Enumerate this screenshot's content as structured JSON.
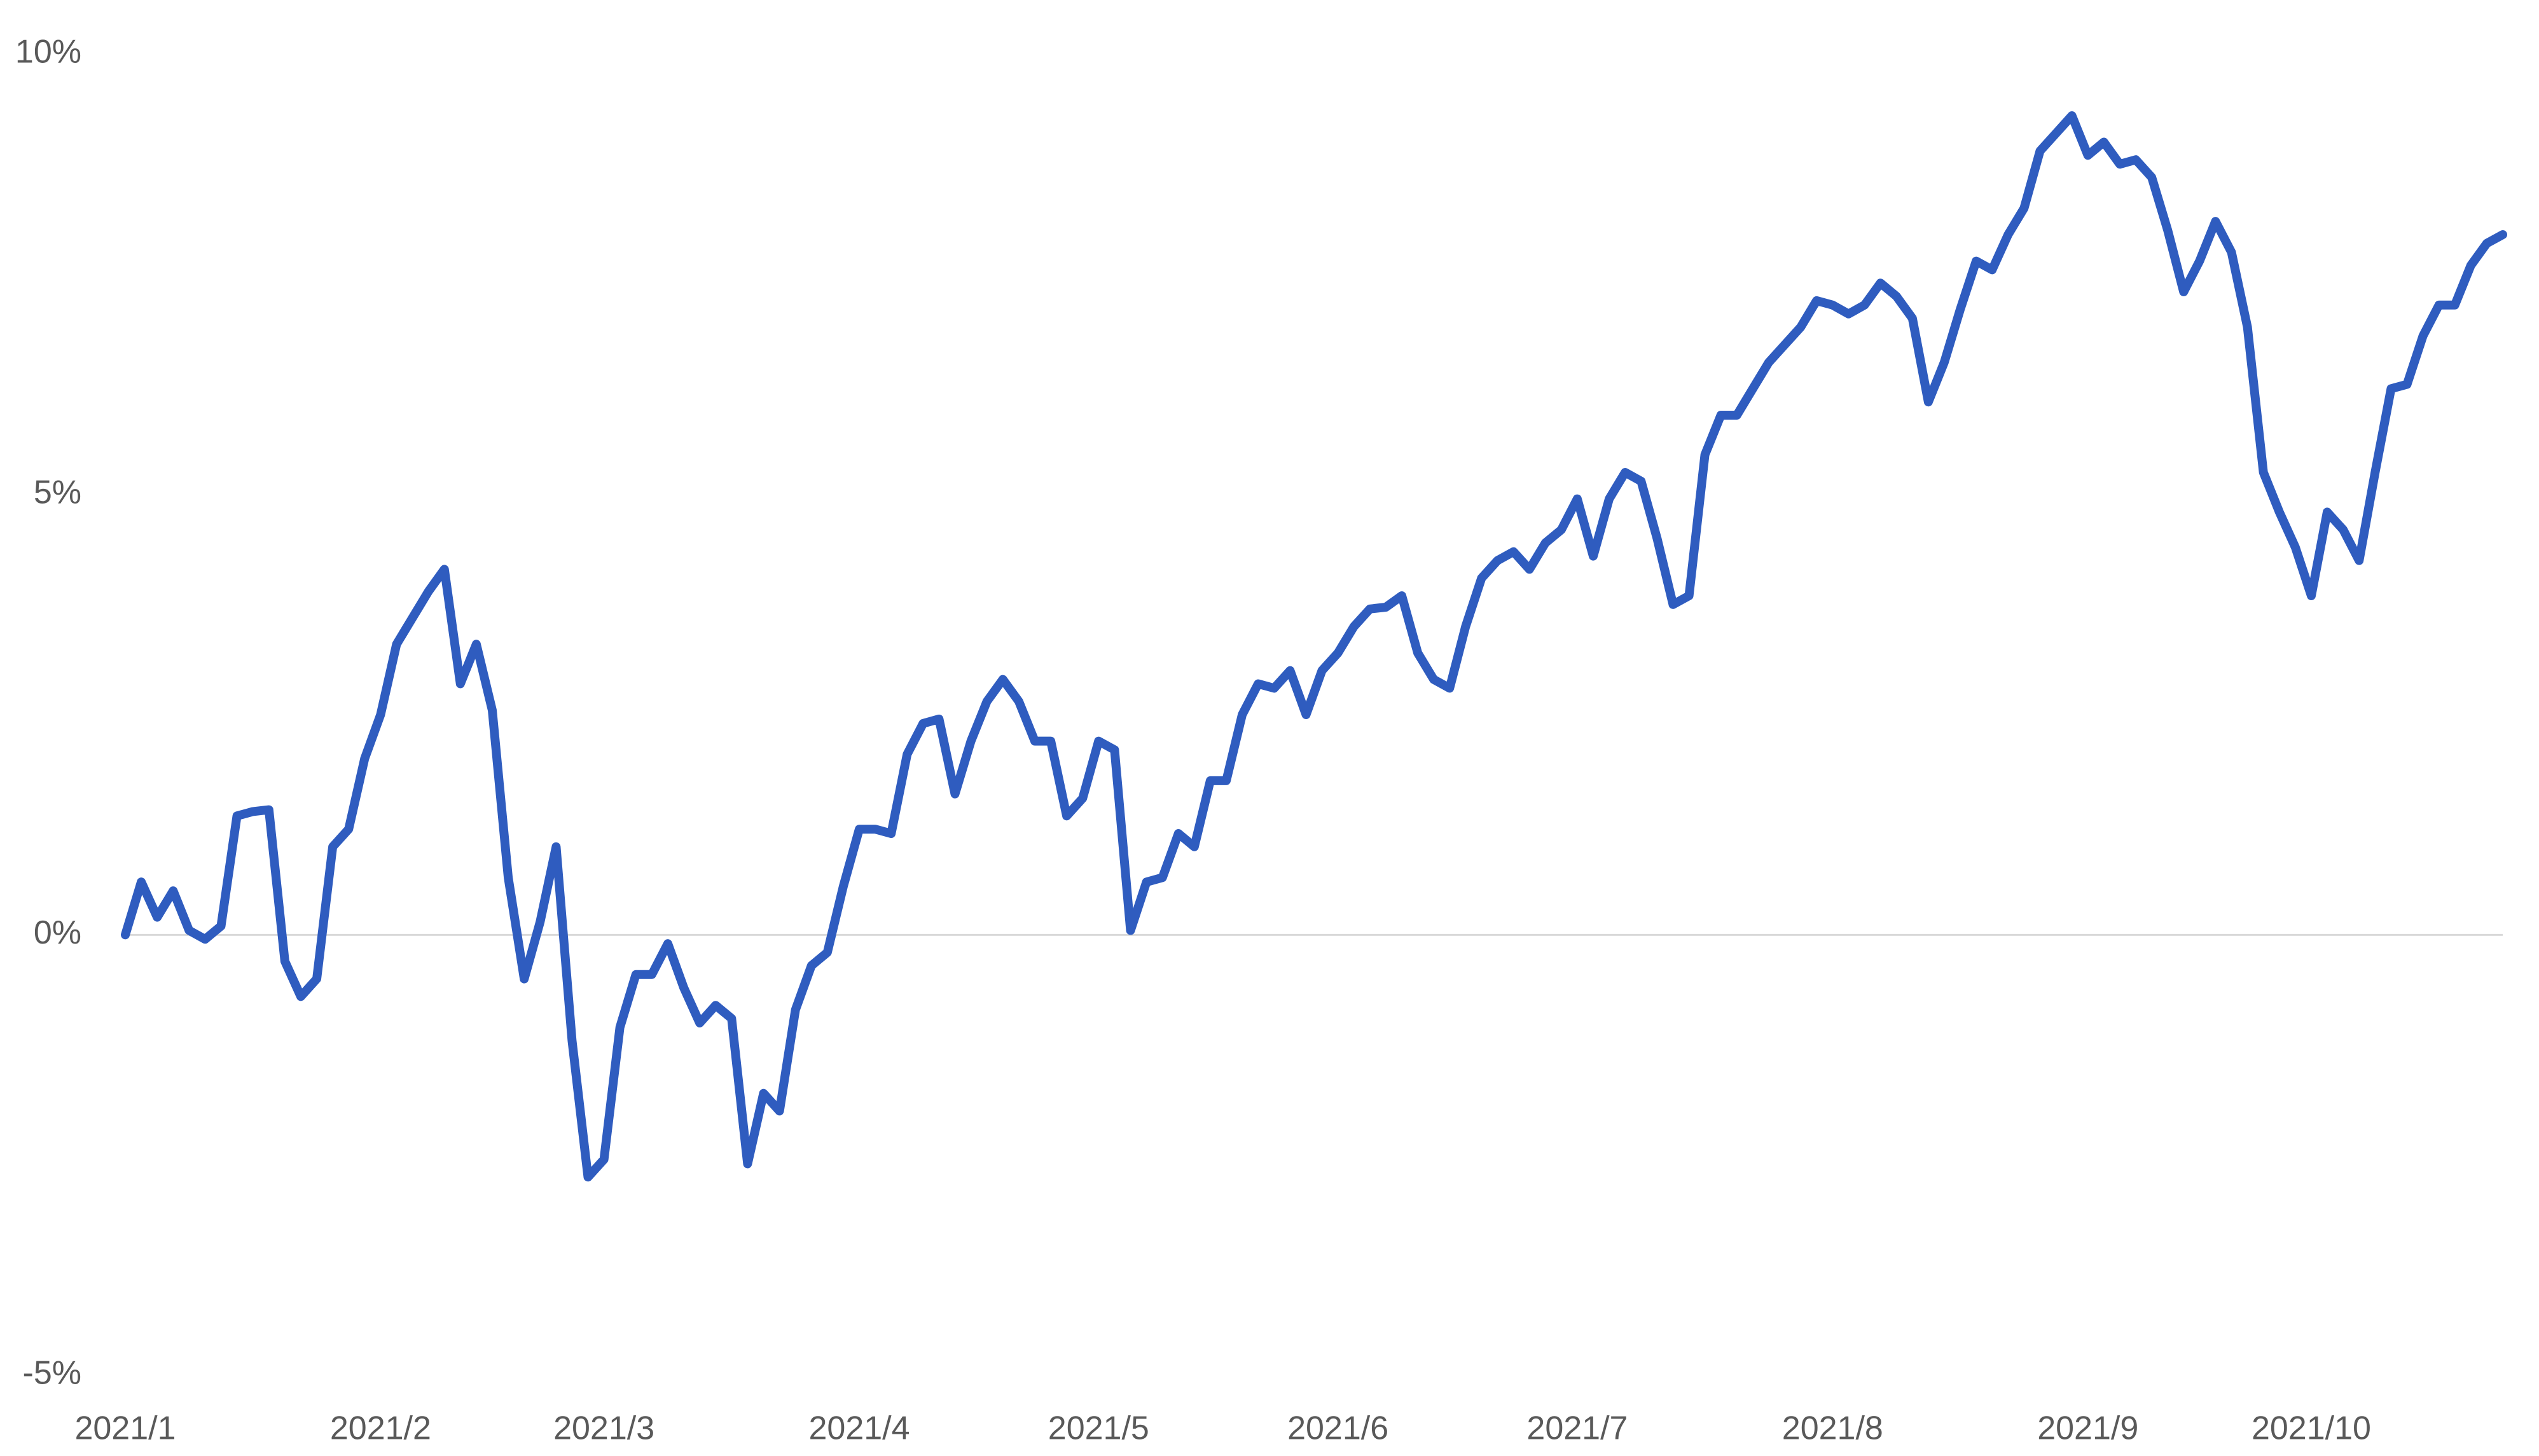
{
  "chart_data": {
    "type": "line",
    "categories": [
      "2021/1",
      null,
      null,
      null,
      null,
      null,
      null,
      null,
      null,
      null,
      null,
      null,
      null,
      null,
      null,
      null,
      "2021/2",
      null,
      null,
      null,
      null,
      null,
      null,
      null,
      null,
      null,
      null,
      null,
      null,
      null,
      "2021/3",
      null,
      null,
      null,
      null,
      null,
      null,
      null,
      null,
      null,
      null,
      null,
      null,
      null,
      null,
      null,
      "2021/4",
      null,
      null,
      null,
      null,
      null,
      null,
      null,
      null,
      null,
      null,
      null,
      null,
      null,
      null,
      "2021/5",
      null,
      null,
      null,
      null,
      null,
      null,
      null,
      null,
      null,
      null,
      null,
      null,
      null,
      null,
      "2021/6",
      null,
      null,
      null,
      null,
      null,
      null,
      null,
      null,
      null,
      null,
      null,
      null,
      null,
      null,
      "2021/7",
      null,
      null,
      null,
      null,
      null,
      null,
      null,
      null,
      null,
      null,
      null,
      null,
      null,
      null,
      null,
      "2021/8",
      null,
      null,
      null,
      null,
      null,
      null,
      null,
      null,
      null,
      null,
      null,
      null,
      null,
      null,
      null,
      "2021/9",
      null,
      null,
      null,
      null,
      null,
      null,
      null,
      null,
      null,
      null,
      null,
      null,
      null,
      "2021/10",
      null,
      null,
      null,
      null,
      null,
      null,
      null,
      null,
      null,
      null,
      null,
      null
    ],
    "series": [
      {
        "color": "#2f5cbf",
        "values": [
          0,
          0.6,
          0.2,
          0.5,
          0.05,
          -0.05,
          0.1,
          1.35,
          1.4,
          1.42,
          -0.3,
          -0.7,
          -0.5,
          1.0,
          1.2,
          2.0,
          2.5,
          3.3,
          3.6,
          3.9,
          4.15,
          2.85,
          3.3,
          2.55,
          0.65,
          -0.5,
          0.15,
          1.0,
          -1.2,
          -2.75,
          -2.55,
          -1.05,
          -0.45,
          -0.45,
          -0.1,
          -0.6,
          -1.0,
          -0.8,
          -0.95,
          -2.6,
          -1.8,
          -2.0,
          -0.85,
          -0.35,
          -0.2,
          0.55,
          1.2,
          1.2,
          1.15,
          2.05,
          2.4,
          2.45,
          1.6,
          2.2,
          2.65,
          2.9,
          2.65,
          2.2,
          2.2,
          1.35,
          1.55,
          2.2,
          2.1,
          0.05,
          0.6,
          0.65,
          1.15,
          1.0,
          1.75,
          1.75,
          2.5,
          2.85,
          2.8,
          3.0,
          2.5,
          3.0,
          3.2,
          3.5,
          3.7,
          3.72,
          3.85,
          3.2,
          2.9,
          2.8,
          3.5,
          4.05,
          4.25,
          4.35,
          4.15,
          4.45,
          4.6,
          4.95,
          4.3,
          4.95,
          5.25,
          5.15,
          4.5,
          3.75,
          3.85,
          5.45,
          5.9,
          5.9,
          6.2,
          6.5,
          6.7,
          6.9,
          7.2,
          7.15,
          7.05,
          7.15,
          7.4,
          7.25,
          7.0,
          6.05,
          6.5,
          7.1,
          7.65,
          7.55,
          7.95,
          8.25,
          8.9,
          9.1,
          9.3,
          8.85,
          9.0,
          8.75,
          8.8,
          8.6,
          8.0,
          7.3,
          7.65,
          8.1,
          7.75,
          6.9,
          5.25,
          4.8,
          4.4,
          3.85,
          4.8,
          4.6,
          4.25,
          5.25,
          6.2,
          6.25,
          6.8,
          7.15,
          7.15,
          7.6,
          7.85,
          7.95
        ]
      }
    ],
    "ylim": [
      -5,
      10
    ],
    "yticks": [
      {
        "value": -5,
        "label": "-5%"
      },
      {
        "value": 0,
        "label": "0%"
      },
      {
        "value": 5,
        "label": "5%"
      },
      {
        "value": 10,
        "label": "10%"
      }
    ]
  }
}
